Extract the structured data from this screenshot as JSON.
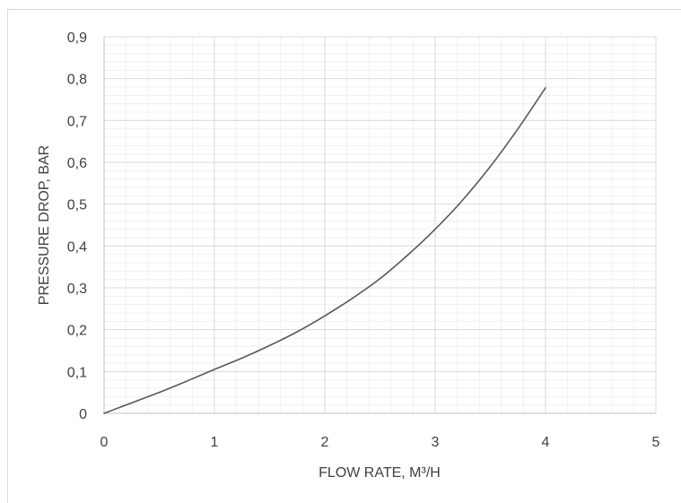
{
  "chart_data": {
    "type": "line",
    "title": "",
    "xlabel": "FLOW RATE, M³/H",
    "ylabel": "PRESSURE DROP, BAR",
    "xlim": [
      0,
      5
    ],
    "ylim": [
      0,
      0.9
    ],
    "x_ticks": [
      0,
      1,
      2,
      3,
      4,
      5
    ],
    "x_tick_labels": [
      "0",
      "1",
      "2",
      "3",
      "4",
      "5"
    ],
    "y_ticks": [
      0,
      0.1,
      0.2,
      0.3,
      0.4,
      0.5,
      0.6,
      0.7,
      0.8,
      0.9
    ],
    "y_tick_labels": [
      "0",
      "0,1",
      "0,2",
      "0,3",
      "0,4",
      "0,5",
      "0,6",
      "0,7",
      "0,8",
      "0,9"
    ],
    "grid": true,
    "minor_grid": true,
    "legend": "none",
    "colors": {
      "line": "#595959",
      "major_grid": "#d9d9d9",
      "minor_grid": "#f0f0f0",
      "axis": "#bfbfbf",
      "text": "#404040"
    },
    "series": [
      {
        "x": [
          0,
          0.25,
          0.5,
          0.75,
          1.0,
          1.25,
          1.5,
          1.75,
          2.0,
          2.25,
          2.5,
          2.75,
          3.0,
          3.25,
          3.5,
          3.75,
          4.0
        ],
        "values": [
          0,
          0.025,
          0.05,
          0.077,
          0.105,
          0.132,
          0.162,
          0.195,
          0.233,
          0.275,
          0.322,
          0.378,
          0.44,
          0.51,
          0.59,
          0.68,
          0.778
        ]
      }
    ]
  }
}
